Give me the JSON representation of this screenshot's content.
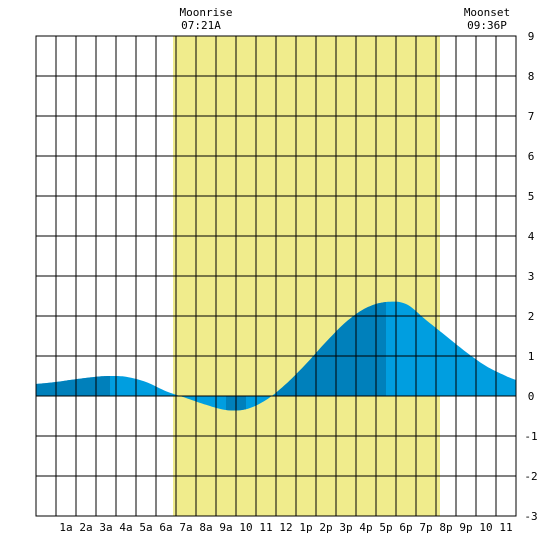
{
  "chart_data": {
    "type": "area",
    "title": "",
    "xlabel": "",
    "ylabel": "",
    "x_range_hours": [
      -1,
      23
    ],
    "ylim": [
      -3,
      9
    ],
    "y_ticks": [
      -3,
      -2,
      -1,
      0,
      1,
      2,
      3,
      4,
      5,
      6,
      7,
      8,
      9
    ],
    "x_ticks": [
      {
        "hour": 0.5,
        "label": "1a"
      },
      {
        "hour": 1.5,
        "label": "2a"
      },
      {
        "hour": 2.5,
        "label": "3a"
      },
      {
        "hour": 3.5,
        "label": "4a"
      },
      {
        "hour": 4.5,
        "label": "5a"
      },
      {
        "hour": 5.5,
        "label": "6a"
      },
      {
        "hour": 6.5,
        "label": "7a"
      },
      {
        "hour": 7.5,
        "label": "8a"
      },
      {
        "hour": 8.5,
        "label": "9a"
      },
      {
        "hour": 9.5,
        "label": "10"
      },
      {
        "hour": 10.5,
        "label": "11"
      },
      {
        "hour": 11.5,
        "label": "12"
      },
      {
        "hour": 12.5,
        "label": "1p"
      },
      {
        "hour": 13.5,
        "label": "2p"
      },
      {
        "hour": 14.5,
        "label": "3p"
      },
      {
        "hour": 15.5,
        "label": "4p"
      },
      {
        "hour": 16.5,
        "label": "5p"
      },
      {
        "hour": 17.5,
        "label": "6p"
      },
      {
        "hour": 18.5,
        "label": "7p"
      },
      {
        "hour": 19.5,
        "label": "8p"
      },
      {
        "hour": 20.5,
        "label": "9p"
      },
      {
        "hour": 21.5,
        "label": "10"
      },
      {
        "hour": 22.5,
        "label": "11"
      }
    ],
    "daylight_hours": [
      5.85,
      19.2
    ],
    "tide_series": {
      "x_hours": [
        -1,
        0,
        1,
        2,
        2.7,
        3.5,
        4.5,
        5.5,
        6.5,
        7.5,
        8.5,
        9.5,
        10.5,
        11.5,
        12.5,
        13.5,
        14.5,
        15.5,
        16.5,
        17.5,
        18.5,
        19.5,
        20.5,
        21.5,
        22.5,
        23
      ],
      "height_ft": [
        0.3,
        0.35,
        0.42,
        0.48,
        0.5,
        0.48,
        0.35,
        0.12,
        -0.05,
        -0.22,
        -0.35,
        -0.33,
        -0.1,
        0.3,
        0.8,
        1.35,
        1.85,
        2.2,
        2.35,
        2.3,
        1.9,
        1.5,
        1.1,
        0.75,
        0.5,
        0.4
      ]
    },
    "shading_bands": [
      [
        -1,
        2.7
      ],
      [
        8.5,
        9.5
      ],
      [
        11,
        16.5
      ]
    ],
    "annotations": [
      {
        "label": "Moonrise",
        "time": "07:21A",
        "hour": 7.35
      },
      {
        "label": "Moonset",
        "time": "09:36P",
        "hour": 21.6
      }
    ],
    "colors": {
      "daylight": "#f0ec8c",
      "tide_light": "#009ee0",
      "tide_dark": "#0080bb",
      "grid": "#000000"
    }
  }
}
